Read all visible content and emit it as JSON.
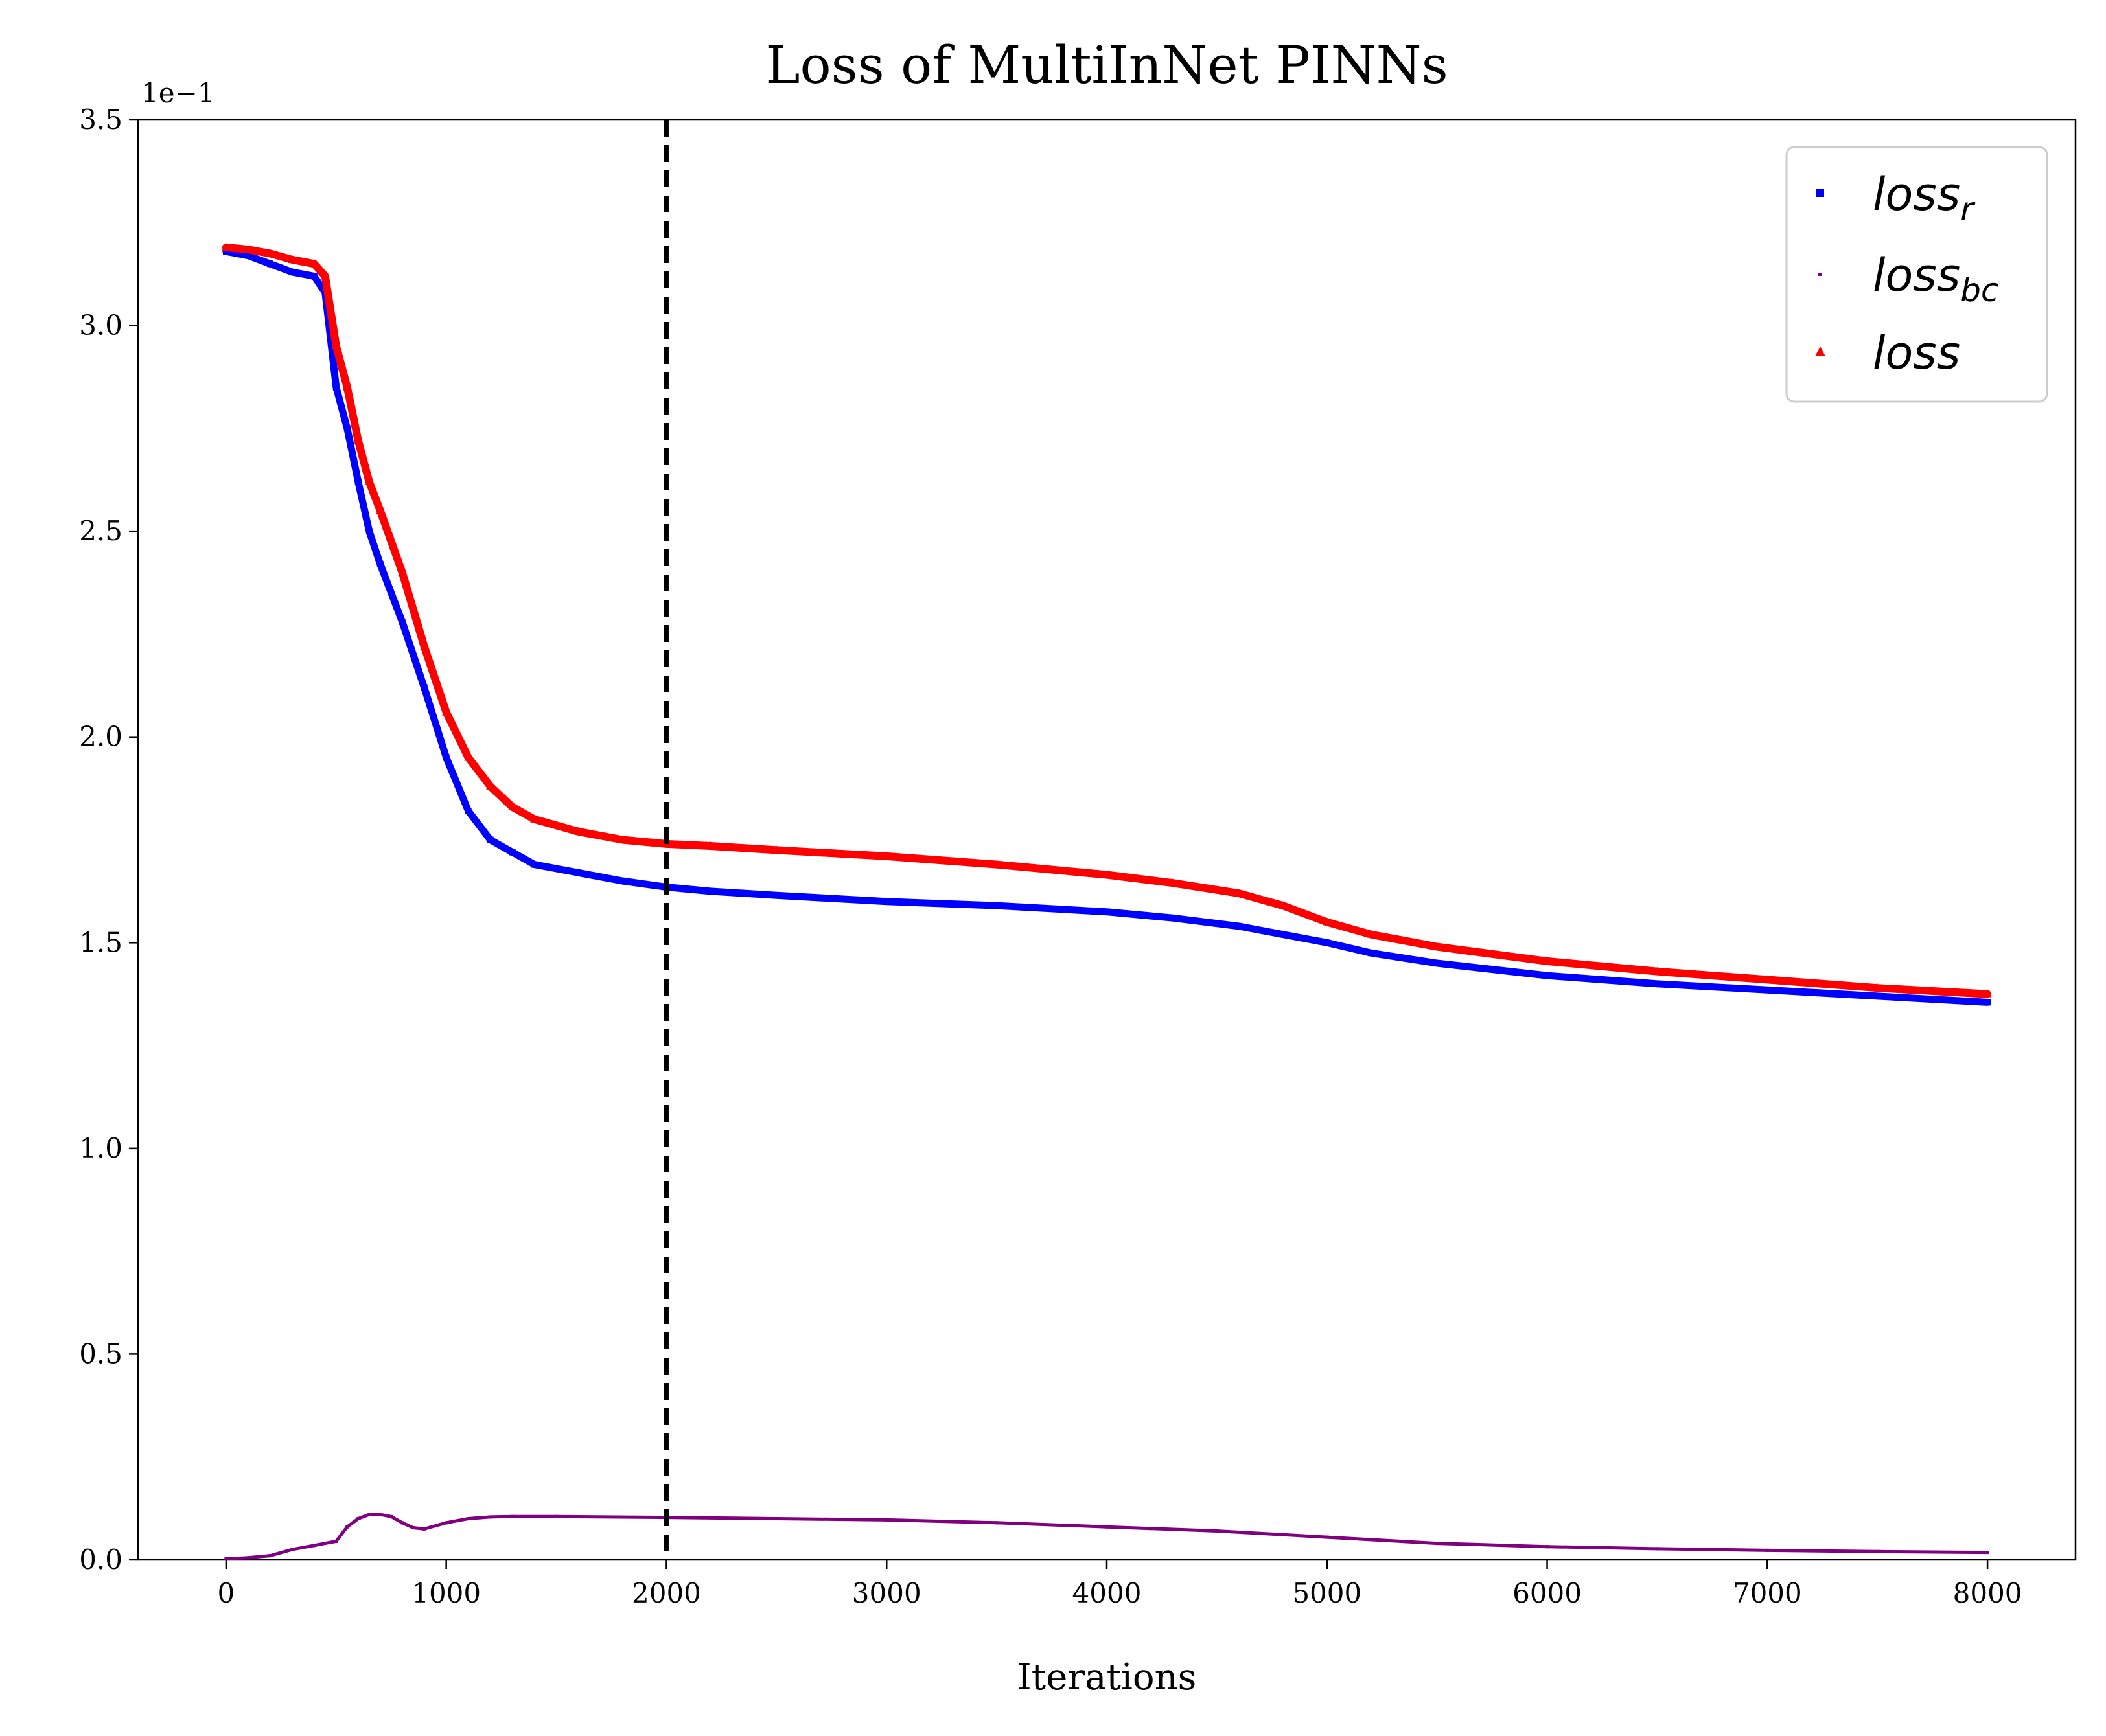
{
  "chart_data": {
    "type": "scatter",
    "title": "Loss of MultiInNet PINNs",
    "xlabel": "Iterations",
    "ylabel": "",
    "y_offset_text": "1e−1",
    "xlim": [
      -400,
      8400
    ],
    "ylim": [
      0,
      3.5
    ],
    "xticks": [
      0,
      1000,
      2000,
      3000,
      4000,
      5000,
      6000,
      7000,
      8000
    ],
    "xtick_labels": [
      "0",
      "1000",
      "2000",
      "3000",
      "4000",
      "5000",
      "6000",
      "7000",
      "8000"
    ],
    "yticks": [
      0.0,
      0.5,
      1.0,
      1.5,
      2.0,
      2.5,
      3.0,
      3.5
    ],
    "ytick_labels": [
      "0.0",
      "0.5",
      "1.0",
      "1.5",
      "2.0",
      "2.5",
      "3.0",
      "3.5"
    ],
    "grid": false,
    "legend_position": "top-right",
    "vline": {
      "x": 2000,
      "style": "dashed",
      "color": "#000000"
    },
    "series": [
      {
        "name": "loss_r",
        "legend_base": "loss",
        "legend_sub": "r",
        "marker": "square",
        "color": "#0000ff",
        "x": [
          0,
          100,
          200,
          300,
          400,
          450,
          500,
          550,
          600,
          650,
          700,
          800,
          900,
          1000,
          1100,
          1200,
          1300,
          1400,
          1600,
          1800,
          2000,
          2200,
          2500,
          3000,
          3500,
          4000,
          4300,
          4600,
          4800,
          5000,
          5200,
          5500,
          6000,
          6500,
          7000,
          7500,
          8000
        ],
        "y": [
          3.18,
          3.17,
          3.15,
          3.13,
          3.12,
          3.08,
          2.85,
          2.75,
          2.62,
          2.5,
          2.42,
          2.28,
          2.12,
          1.95,
          1.82,
          1.75,
          1.72,
          1.69,
          1.67,
          1.65,
          1.635,
          1.625,
          1.615,
          1.6,
          1.59,
          1.575,
          1.56,
          1.54,
          1.52,
          1.5,
          1.475,
          1.45,
          1.42,
          1.4,
          1.385,
          1.37,
          1.355
        ]
      },
      {
        "name": "loss_bc",
        "legend_base": "loss",
        "legend_sub": "bc",
        "marker": "pixel",
        "color": "#800080",
        "x": [
          0,
          100,
          200,
          300,
          400,
          500,
          550,
          600,
          650,
          700,
          750,
          800,
          850,
          900,
          1000,
          1100,
          1200,
          1300,
          1500,
          2000,
          2500,
          3000,
          3500,
          4000,
          4500,
          5000,
          5500,
          6000,
          6500,
          7000,
          7500,
          8000
        ],
        "y": [
          0.003,
          0.005,
          0.01,
          0.025,
          0.035,
          0.045,
          0.08,
          0.1,
          0.11,
          0.11,
          0.105,
          0.09,
          0.078,
          0.075,
          0.09,
          0.1,
          0.104,
          0.105,
          0.105,
          0.103,
          0.1,
          0.097,
          0.09,
          0.08,
          0.07,
          0.055,
          0.04,
          0.032,
          0.027,
          0.023,
          0.02,
          0.018
        ]
      },
      {
        "name": "loss",
        "legend_base": "loss",
        "legend_sub": "",
        "marker": "triangle",
        "color": "#ff0000",
        "x": [
          0,
          100,
          200,
          300,
          400,
          450,
          500,
          550,
          600,
          650,
          700,
          800,
          900,
          1000,
          1100,
          1200,
          1300,
          1400,
          1600,
          1800,
          2000,
          2200,
          2500,
          3000,
          3500,
          4000,
          4300,
          4600,
          4800,
          5000,
          5200,
          5500,
          6000,
          6500,
          7000,
          7500,
          8000
        ],
        "y": [
          3.19,
          3.185,
          3.175,
          3.16,
          3.15,
          3.12,
          2.95,
          2.85,
          2.72,
          2.62,
          2.55,
          2.4,
          2.22,
          2.06,
          1.95,
          1.88,
          1.83,
          1.8,
          1.77,
          1.75,
          1.74,
          1.735,
          1.725,
          1.71,
          1.69,
          1.665,
          1.645,
          1.62,
          1.59,
          1.55,
          1.52,
          1.49,
          1.455,
          1.43,
          1.41,
          1.39,
          1.375
        ]
      }
    ]
  }
}
